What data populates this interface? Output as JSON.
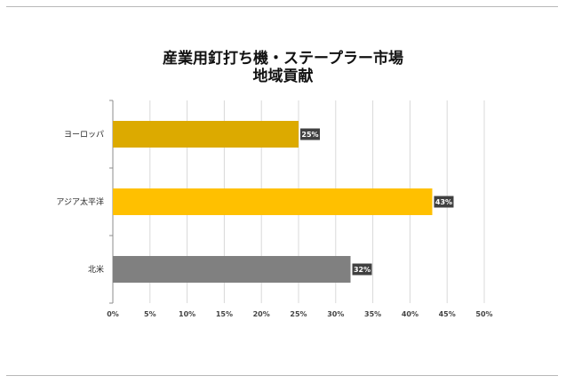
{
  "chart_data": {
    "type": "bar",
    "orientation": "horizontal",
    "title": "産業用釘打ち機・ステープラー市場",
    "subtitle": "地域貢献",
    "categories": [
      "ヨーロッパ",
      "アジア太平洋",
      "北米"
    ],
    "values": [
      25,
      43,
      32
    ],
    "data_labels": [
      "25%",
      "43%",
      "32%"
    ],
    "colors": [
      "#dcaa00",
      "#ffc000",
      "#808080"
    ],
    "xlim": [
      0,
      50
    ],
    "x_ticks": [
      0,
      5,
      10,
      15,
      20,
      25,
      30,
      35,
      40,
      45,
      50
    ],
    "x_tick_labels": [
      "0%",
      "5%",
      "10%",
      "15%",
      "20%",
      "25%",
      "30%",
      "35%",
      "40%",
      "45%",
      "50%"
    ],
    "grid": true,
    "legend": "none"
  }
}
